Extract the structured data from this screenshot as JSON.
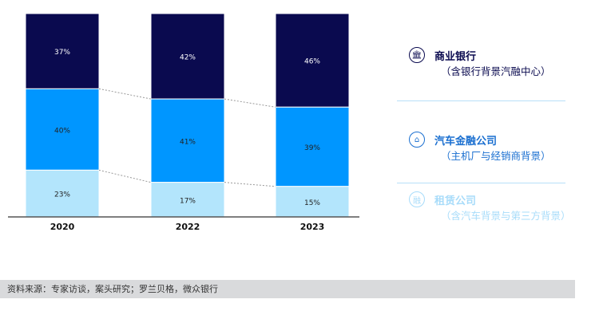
{
  "chart_data": {
    "type": "stacked-bar-100",
    "categories": [
      "2020",
      "2022",
      "2023"
    ],
    "series": [
      {
        "name": "商业银行",
        "values": [
          37,
          42,
          46
        ],
        "color": "#0a0a4f"
      },
      {
        "name": "汽车金融公司",
        "values": [
          40,
          41,
          39
        ],
        "color": "#0096ff"
      },
      {
        "name": "租赁公司",
        "values": [
          23,
          17,
          15
        ],
        "color": "#b3e5fc"
      }
    ],
    "value_suffix": "%",
    "ylim": [
      0,
      100
    ]
  },
  "legend": [
    {
      "title": "商业银行",
      "subtitle": "（含银行背景汽融中心）",
      "color": "#0a0a4f",
      "icon": "bank-icon"
    },
    {
      "title": "汽车金融公司",
      "subtitle": "（主机厂与经销商背景）",
      "color": "#1a6fd0",
      "icon": "house-gear-icon"
    },
    {
      "title": "租赁公司",
      "subtitle": "（含汽车背景与第三方背景）",
      "color": "#a8dcfa",
      "icon": "lease-icon"
    }
  ],
  "footer": "资料来源：专家访谈，案头研究；罗兰贝格，微众银行"
}
